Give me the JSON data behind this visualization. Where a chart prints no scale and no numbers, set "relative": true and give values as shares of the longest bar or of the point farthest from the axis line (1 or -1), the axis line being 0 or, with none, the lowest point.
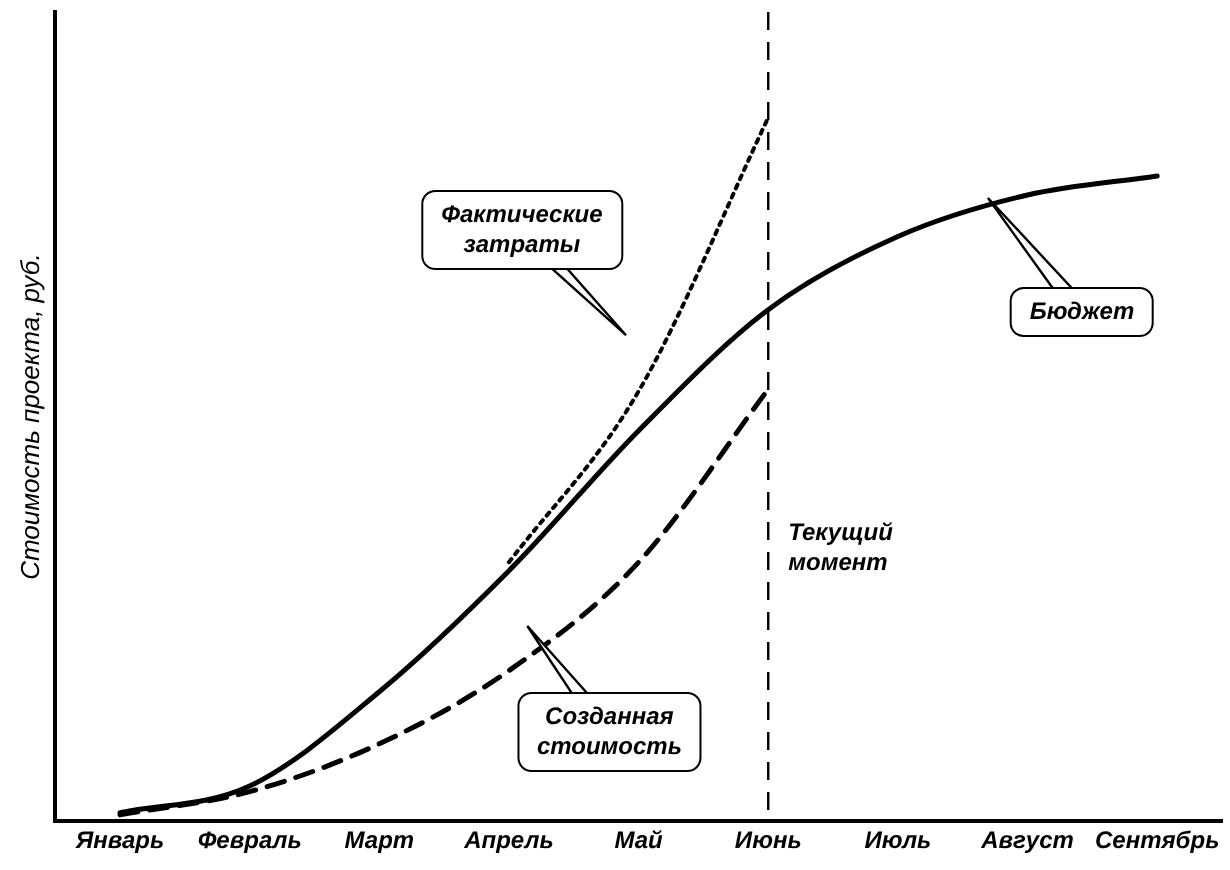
{
  "chart_data": {
    "type": "line",
    "relative": true,
    "ylabel": "Стоимость проекта, руб.",
    "categories": [
      "Январь",
      "Февраль",
      "Март",
      "Апрель",
      "Май",
      "Июнь",
      "Июль",
      "Август",
      "Сентябрь"
    ],
    "series": [
      {
        "color": "#000000",
        "line_style": "solid",
        "values": [
          0.012,
          0.05,
          0.184,
          0.356,
          0.555,
          0.727,
          0.831,
          0.89,
          0.917
        ]
      },
      {
        "color": "#000000",
        "line_style": "dotted",
        "values": [
          null,
          null,
          null,
          0.368,
          0.611,
          1.0,
          null,
          null,
          null
        ]
      },
      {
        "color": "#000000",
        "line_style": "dashed",
        "values": [
          0.009,
          0.042,
          0.11,
          0.214,
          0.368,
          0.614,
          null,
          null,
          null
        ]
      }
    ],
    "ref_lines": [
      {
        "axis": "x",
        "value": "Июнь",
        "label": "Текущий момент",
        "line_style": "dashed",
        "color": "#000000"
      }
    ],
    "annotations": [
      "Фактические затраты",
      "Бюджет",
      "Созданная стоимость"
    ],
    "grid": false,
    "legend": false,
    "marker": "none"
  }
}
